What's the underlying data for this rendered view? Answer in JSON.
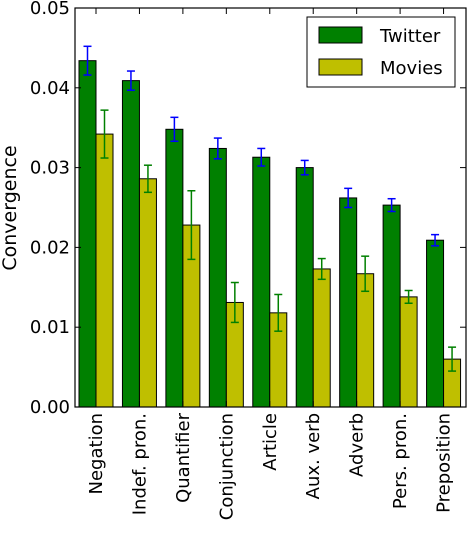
{
  "chart_data": {
    "type": "bar",
    "title": "",
    "xlabel": "",
    "ylabel": "Convergence",
    "ylim": [
      0,
      0.05
    ],
    "yticks": [
      0.0,
      0.01,
      0.02,
      0.03,
      0.04,
      0.05
    ],
    "ytick_labels": [
      "0.00",
      "0.01",
      "0.02",
      "0.03",
      "0.04",
      "0.05"
    ],
    "categories": [
      "Negation",
      "Indef. pron.",
      "Quantifier",
      "Conjunction",
      "Article",
      "Aux. verb",
      "Adverb",
      "Pers. pron.",
      "Preposition"
    ],
    "series": [
      {
        "name": "Twitter",
        "color": "#008000",
        "error_color": "#0000ff",
        "values": [
          0.0434,
          0.0409,
          0.0348,
          0.0324,
          0.0313,
          0.03,
          0.0262,
          0.0253,
          0.0209
        ],
        "errors": [
          0.0018,
          0.0012,
          0.0015,
          0.0013,
          0.0011,
          0.0009,
          0.0012,
          0.0008,
          0.0007
        ]
      },
      {
        "name": "Movies",
        "color": "#bfbf00",
        "error_color": "#008000",
        "values": [
          0.0342,
          0.0286,
          0.0228,
          0.0131,
          0.0118,
          0.0173,
          0.0167,
          0.0138,
          0.006
        ],
        "errors": [
          0.003,
          0.0017,
          0.0043,
          0.0025,
          0.0023,
          0.0013,
          0.0022,
          0.0008,
          0.0015
        ]
      }
    ],
    "legend_position": "top-right",
    "grid": false
  }
}
